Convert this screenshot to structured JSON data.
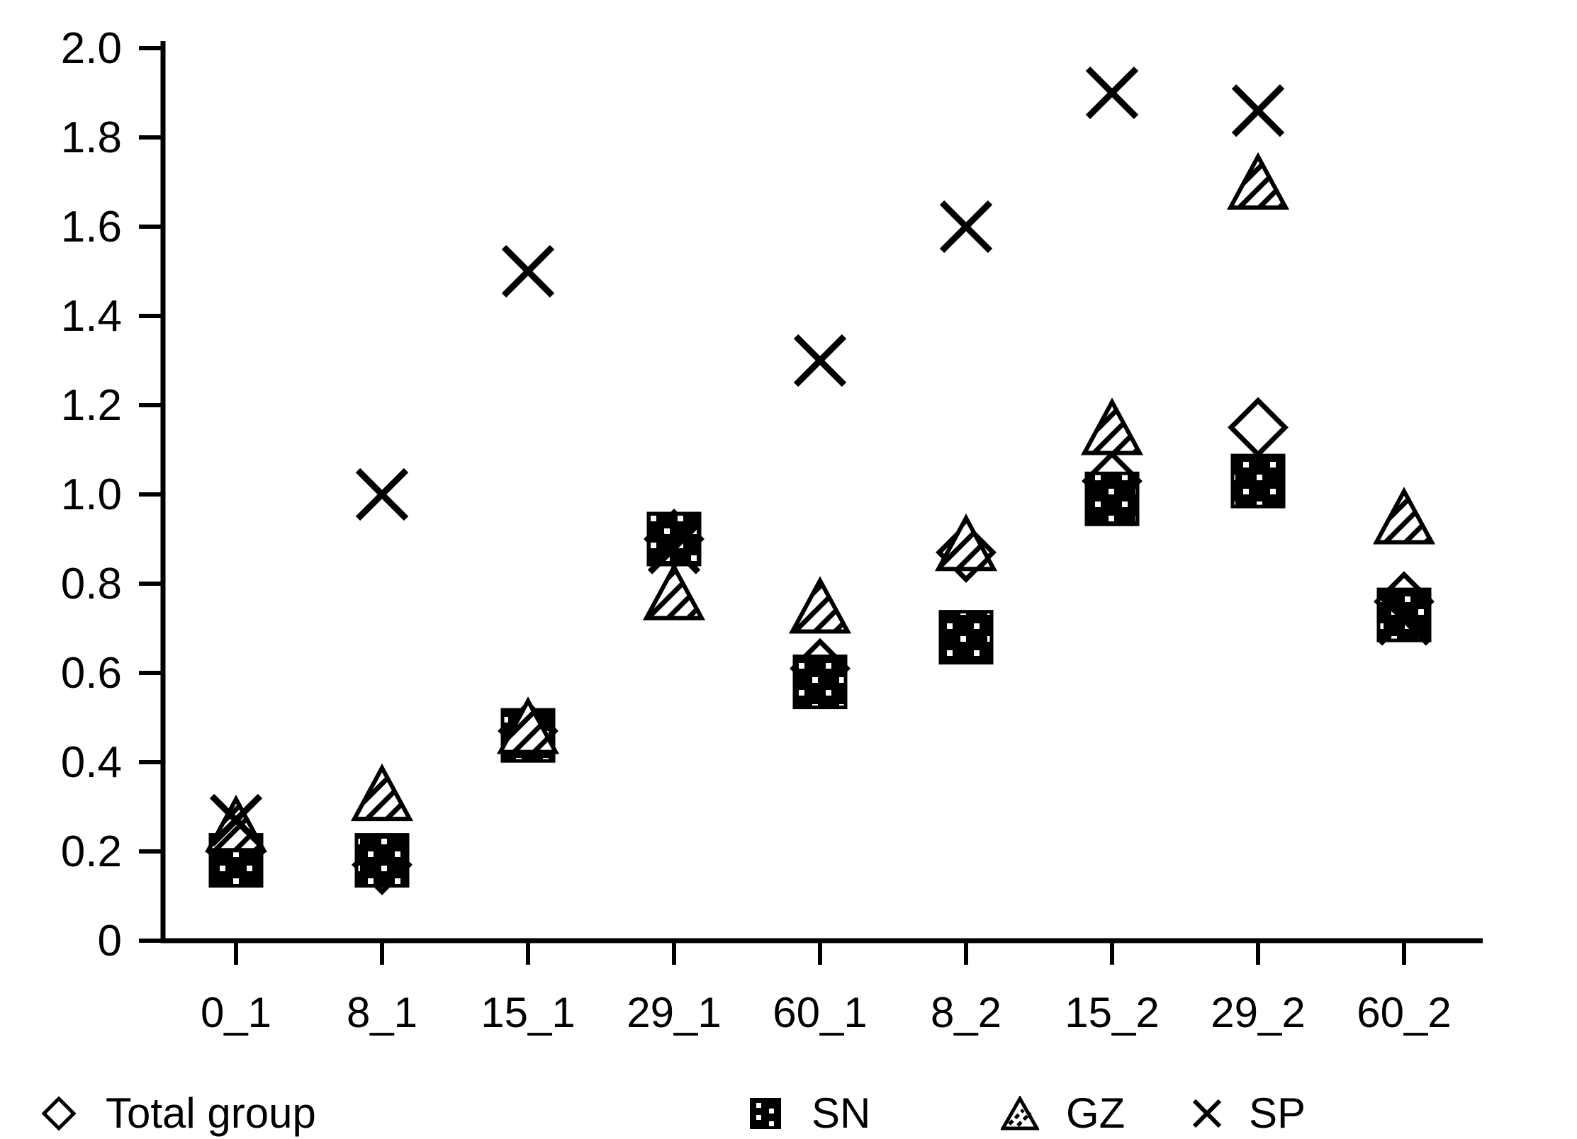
{
  "chart_data": {
    "type": "scatter",
    "title": "",
    "xlabel": "",
    "ylabel": "",
    "categories": [
      "0_1",
      "8_1",
      "15_1",
      "29_1",
      "60_1",
      "8_2",
      "15_2",
      "29_2",
      "60_2"
    ],
    "series": [
      {
        "name": "Total group",
        "marker": "open-diamond",
        "values": [
          0.2,
          0.17,
          0.47,
          0.9,
          0.61,
          0.87,
          1.03,
          1.15,
          0.76
        ]
      },
      {
        "name": "SN",
        "marker": "dotted-black-square",
        "values": [
          0.18,
          0.18,
          0.46,
          0.9,
          0.58,
          0.68,
          0.99,
          1.03,
          0.73
        ]
      },
      {
        "name": "GZ",
        "marker": "hatched-triangle",
        "values": [
          0.26,
          0.33,
          0.48,
          0.78,
          0.75,
          0.89,
          1.15,
          1.7,
          0.95
        ]
      },
      {
        "name": "SP",
        "marker": "x-cross",
        "values": [
          0.27,
          1.0,
          1.5,
          0.88,
          1.3,
          1.6,
          1.9,
          1.86,
          0.72
        ]
      }
    ],
    "ylim": [
      0,
      2.0
    ],
    "ytick_step": 0.2,
    "ytick_labels": [
      "0",
      "0.2",
      "0.4",
      "0.6",
      "0.8",
      "1.0",
      "1.2",
      "1.4",
      "1.6",
      "1.8",
      "2.0"
    ],
    "grid": false,
    "legend_position": "bottom"
  },
  "legend": {
    "items": [
      {
        "label": "Total group",
        "marker": "open-diamond"
      },
      {
        "label": "SN",
        "marker": "dotted-black-square"
      },
      {
        "label": "GZ",
        "marker": "hatched-triangle"
      },
      {
        "label": "SP",
        "marker": "x-cross"
      }
    ]
  },
  "colors": {
    "foreground": "#000000",
    "background": "#ffffff"
  }
}
